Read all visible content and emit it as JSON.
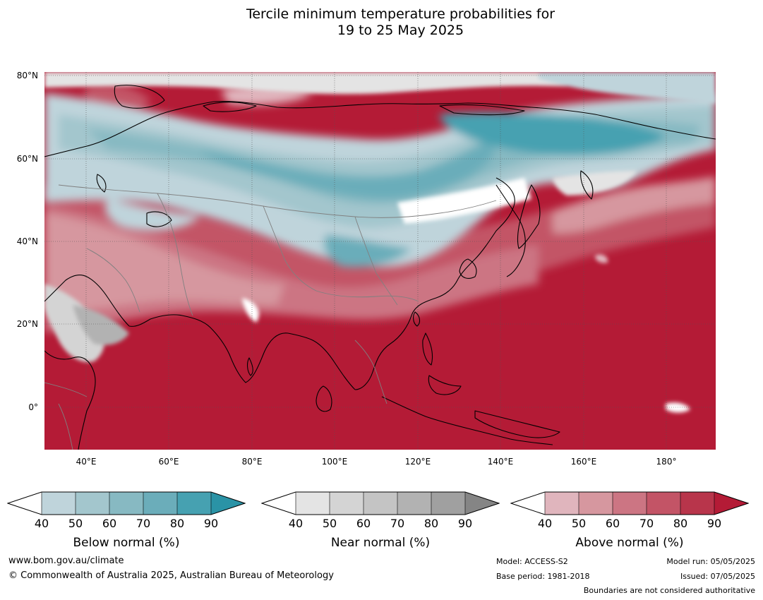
{
  "title": {
    "line1": "Tercile minimum temperature probabilities for",
    "line2": "19 to 25 May 2025"
  },
  "map": {
    "lat_labels": [
      "80°N",
      "60°N",
      "40°N",
      "20°N",
      "0°"
    ],
    "lon_labels": [
      "40°E",
      "60°E",
      "80°E",
      "100°E",
      "120°E",
      "140°E",
      "160°E",
      "180°"
    ]
  },
  "colorbars": [
    {
      "label": "Below normal (%)",
      "ticks": [
        "40",
        "50",
        "60",
        "70",
        "80",
        "90"
      ],
      "colors": [
        "#ffffff",
        "#bfd4db",
        "#a3c6cd",
        "#87b9c2",
        "#6badba",
        "#46a1b1",
        "#2a93a6"
      ]
    },
    {
      "label": "Near normal (%)",
      "ticks": [
        "40",
        "50",
        "60",
        "70",
        "80",
        "90"
      ],
      "colors": [
        "#ffffff",
        "#e4e4e4",
        "#d4d4d4",
        "#c4c4c4",
        "#b2b2b2",
        "#a0a0a0",
        "#858585"
      ]
    },
    {
      "label": "Above normal (%)",
      "ticks": [
        "40",
        "50",
        "60",
        "70",
        "80",
        "90"
      ],
      "colors": [
        "#ffffff",
        "#e0b5bd",
        "#d6979f",
        "#cc7583",
        "#c35466",
        "#b8354b",
        "#b41b36"
      ]
    }
  ],
  "footer": {
    "url": "www.bom.gov.au/climate",
    "copyright": "© Commonwealth of Australia 2025, Australian Bureau of Meteorology",
    "model": "Model: ACCESS-S2",
    "base_period": "Base period: 1981-2018",
    "model_run": "Model run: 05/05/2025",
    "issued": "Issued: 07/05/2025",
    "disclaimer": "Boundaries are not considered authoritative"
  }
}
